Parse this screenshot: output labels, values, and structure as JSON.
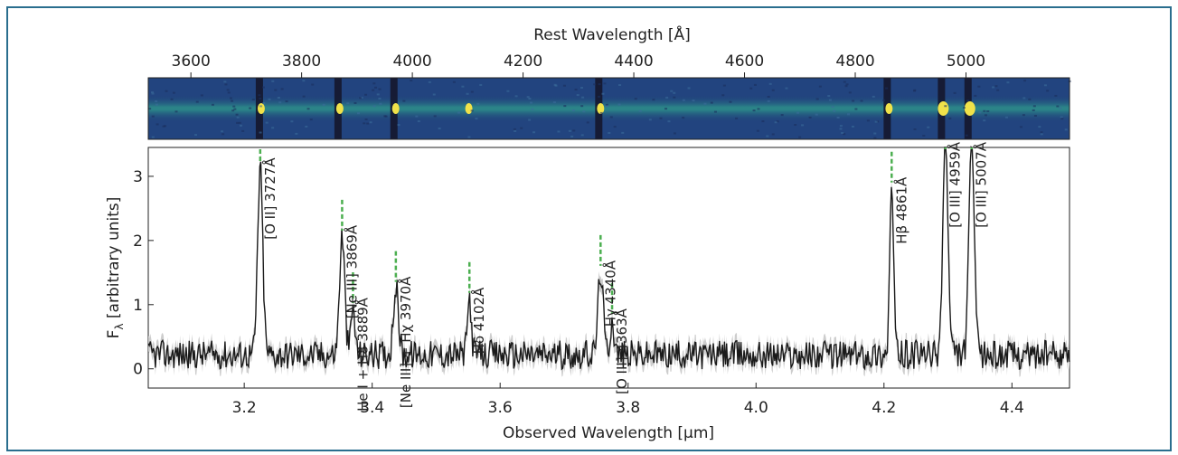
{
  "figure": {
    "border_color": "#2a6e8e"
  },
  "chart_data": [
    {
      "type": "heatmap",
      "name": "2D spectrum",
      "colormap": "viridis",
      "xlabel": "Rest Wavelength [Å]",
      "xlim": [
        3523,
        5187
      ],
      "xticks": [
        3600,
        3800,
        4000,
        4200,
        4400,
        4600,
        4800,
        5000
      ],
      "xtick_labels": [
        "3600",
        "3800",
        "4000",
        "4200",
        "4400",
        "4600",
        "4800",
        "5000"
      ],
      "bright_line_centers_rest": [
        3727,
        3869,
        3970,
        4102,
        4340,
        4861,
        4959,
        5007
      ],
      "dark_stripe_centers_rest": [
        3727,
        3869,
        3970,
        4340,
        4861,
        4959,
        5007
      ]
    },
    {
      "type": "line",
      "name": "1D spectrum",
      "xlabel": "Observed Wavelength [µm]",
      "ylabel_main": "F",
      "ylabel_sub": "λ",
      "ylabel_rest": " [arbitrary units]",
      "xlim": [
        3.05,
        4.49
      ],
      "ylim": [
        -0.3,
        3.45
      ],
      "xticks": [
        3.2,
        3.4,
        3.6,
        3.8,
        4.0,
        4.2,
        4.4
      ],
      "xtick_labels": [
        "3.2",
        "3.4",
        "3.6",
        "3.8",
        "4.0",
        "4.2",
        "4.4"
      ],
      "yticks": [
        0,
        1,
        2,
        3
      ],
      "ytick_labels": [
        "0",
        "1",
        "2",
        "3"
      ],
      "series_color": "#1a1a1a",
      "error_color": "#c8c8c8",
      "marker_color": "#4caf50",
      "continuum_level": 0.22,
      "emission_lines": [
        {
          "label": "[O II] 3727Å",
          "x": 3.225,
          "peak": 2.9,
          "width": 0.004
        },
        {
          "label": "[Ne III] 3869Å",
          "x": 3.353,
          "peak": 1.85,
          "width": 0.004
        },
        {
          "label": "He I + H8 3889Å",
          "x": 3.37,
          "peak": 0.72,
          "width": 0.003
        },
        {
          "label": "[Ne III] + Hχ 3970Å",
          "x": 3.437,
          "peak": 1.05,
          "width": 0.004
        },
        {
          "label": "Hδ 4102Å",
          "x": 3.552,
          "peak": 0.88,
          "width": 0.003
        },
        {
          "label": "Hγ 4340Å",
          "x": 3.757,
          "peak": 1.3,
          "width": 0.004
        },
        {
          "label": "[O III] 4363Å",
          "x": 3.775,
          "peak": 0.55,
          "width": 0.003
        },
        {
          "label": "Hβ 4861Å",
          "x": 4.212,
          "peak": 2.6,
          "width": 0.003
        },
        {
          "label": "[O III] 4959Å",
          "x": 4.296,
          "peak": 3.4,
          "width": 0.004
        },
        {
          "label": "[O III] 5007Å",
          "x": 4.337,
          "peak": 3.4,
          "width": 0.004
        }
      ]
    }
  ]
}
